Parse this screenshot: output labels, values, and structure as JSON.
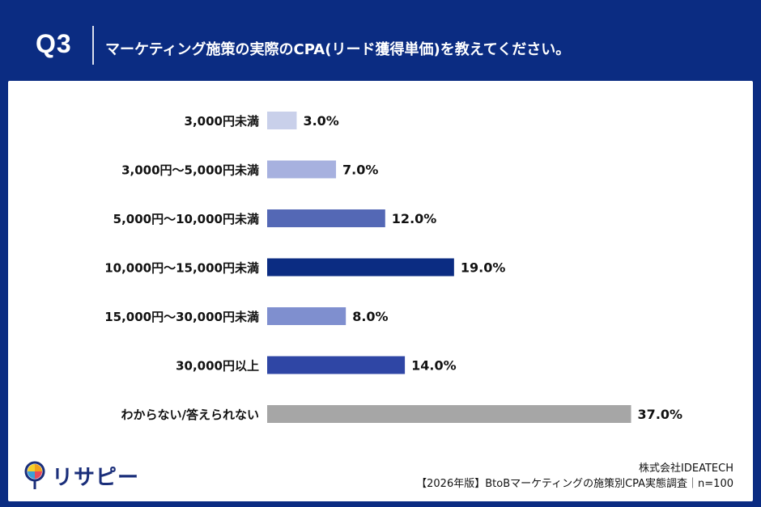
{
  "header": {
    "question_no": "Q3",
    "question_text": "マーケティング施策の実際のCPA(リード獲得単価)を教えてください。"
  },
  "logo": {
    "icon": "risapi-logo-icon",
    "text": "リサピー"
  },
  "footer": {
    "company": "株式会社IDEATECH",
    "survey": "【2026年版】BtoBマーケティングの施策別CPA実態調査｜n=100"
  },
  "colors": {
    "header_bg": "#0b2c82",
    "bars": [
      "#c9d0ea",
      "#a7b1df",
      "#5468b5",
      "#0b2c82",
      "#7f8fcf",
      "#2f46a5",
      "#a6a6a6"
    ]
  },
  "chart_data": {
    "type": "bar",
    "orientation": "horizontal",
    "unit": "%",
    "categories": [
      "3,000円未満",
      "3,000円〜5,000円未満",
      "5,000円〜10,000円未満",
      "10,000円〜15,000円未満",
      "15,000円〜30,000円未満",
      "30,000円以上",
      "わからない/答えられない"
    ],
    "values": [
      3.0,
      7.0,
      12.0,
      19.0,
      8.0,
      14.0,
      37.0
    ],
    "value_labels": [
      "3.0%",
      "7.0%",
      "12.0%",
      "19.0%",
      "8.0%",
      "14.0%",
      "37.0%"
    ]
  }
}
